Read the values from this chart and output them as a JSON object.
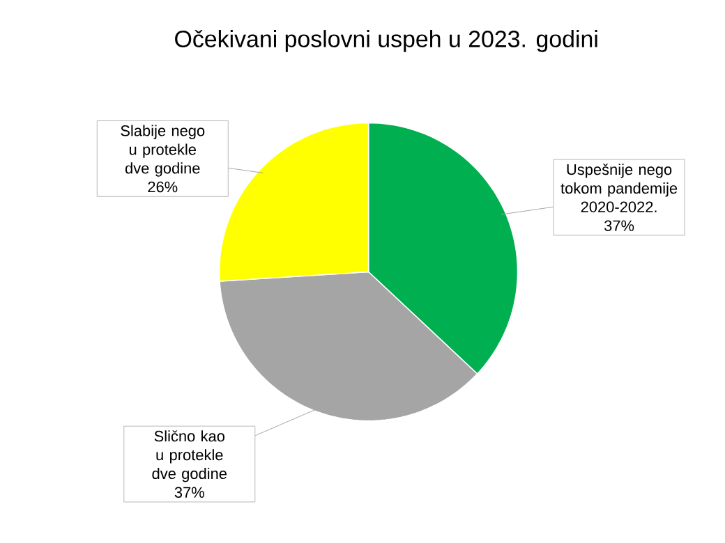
{
  "chart_data": {
    "type": "pie",
    "title": "Očekivani poslovni uspeh u 2023. godini",
    "categories": [
      "Uspešnije nego tokom pandemije 2020-2022.",
      "Slično kao u protekle dve godine",
      "Slabije nego u protekle dve godine"
    ],
    "values": [
      37,
      37,
      26
    ],
    "value_labels": [
      "37%",
      "37%",
      "26%"
    ],
    "colors": [
      "#00b050",
      "#a5a5a5",
      "#ffff00"
    ]
  }
}
